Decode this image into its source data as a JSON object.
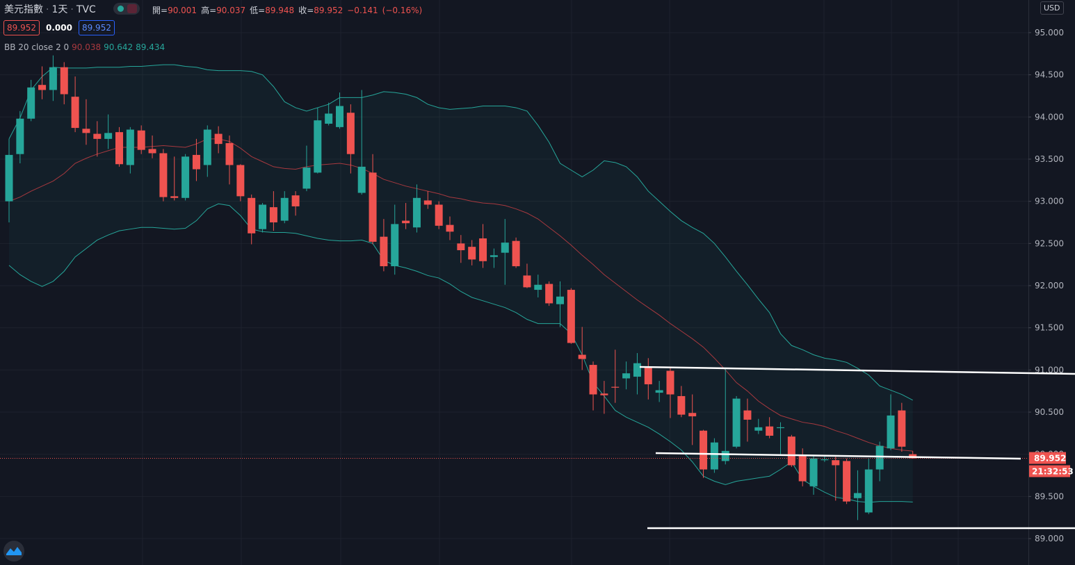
{
  "chart_data": {
    "type": "candlestick",
    "title": "美元指數",
    "interval": "1天",
    "source": "TVC",
    "currency": "USD",
    "legend": {
      "open_label": "開=",
      "high_label": "高=",
      "low_label": "低=",
      "close_label": "收=",
      "change": "−0.141",
      "change_pct": "(−0.16%)"
    },
    "price_boxes": [
      "89.952",
      "0.000",
      "89.952"
    ],
    "indicator_label": "BB 20 close 2 0",
    "countdown": "21:32:53",
    "up_color": "#26a69a",
    "down_color": "#ef5350",
    "open": [
      93.0,
      93.56,
      93.98,
      94.38,
      94.32,
      94.59,
      94.24,
      93.86,
      93.8,
      93.74,
      93.82,
      93.43,
      93.84,
      93.62,
      93.57,
      93.06,
      93.04,
      93.55,
      93.43,
      93.8,
      93.69,
      93.43,
      93.04,
      92.67,
      92.93,
      92.77,
      93.07,
      93.15,
      93.34,
      93.92,
      93.88,
      94.05,
      93.1,
      93.34,
      92.58,
      92.23,
      92.77,
      92.69,
      93.01,
      92.96,
      92.72,
      92.5,
      92.46,
      92.56,
      92.34,
      92.39,
      92.53,
      92.12,
      91.95,
      92.02,
      91.78,
      91.95,
      91.18,
      91.06,
      90.72,
      90.8,
      90.9,
      90.92,
      91.04,
      90.73,
      90.99,
      90.69,
      90.49,
      90.28,
      89.82,
      89.92,
      90.09,
      90.52,
      90.28,
      90.33,
      90.31,
      90.21,
      89.98,
      89.62,
      89.93,
      89.93,
      89.92,
      89.48,
      89.31,
      89.82,
      90.07,
      90.52,
      90.001
    ],
    "high": [
      93.74,
      94.07,
      94.44,
      94.6,
      94.73,
      94.65,
      94.48,
      94.21,
      93.95,
      94.03,
      93.88,
      93.88,
      93.9,
      93.78,
      93.62,
      93.53,
      93.56,
      93.74,
      93.9,
      93.89,
      93.78,
      93.44,
      93.08,
      92.98,
      93.12,
      93.12,
      93.12,
      93.66,
      94.11,
      94.17,
      94.29,
      94.15,
      94.32,
      93.56,
      92.79,
      92.96,
      92.98,
      93.2,
      93.12,
      93.0,
      92.82,
      92.6,
      92.54,
      92.73,
      92.44,
      92.79,
      92.57,
      92.26,
      92.13,
      92.05,
      92.05,
      91.97,
      91.51,
      91.1,
      90.87,
      91.24,
      91.1,
      91.2,
      91.14,
      90.87,
      91.02,
      90.81,
      90.71,
      90.29,
      90.19,
      91.02,
      90.69,
      90.66,
      90.42,
      90.44,
      90.38,
      90.23,
      90.07,
      89.99,
      89.99,
      89.97,
      89.95,
      89.81,
      89.95,
      90.15,
      90.71,
      90.61,
      90.037
    ],
    "low": [
      92.75,
      93.45,
      93.95,
      94.21,
      94.19,
      94.15,
      93.82,
      93.67,
      93.53,
      93.62,
      93.41,
      93.33,
      93.56,
      93.51,
      93.0,
      93.01,
      93.01,
      93.24,
      93.29,
      93.57,
      93.2,
      93.0,
      92.49,
      92.63,
      92.65,
      92.74,
      92.83,
      93.12,
      93.33,
      93.9,
      93.86,
      93.33,
      93.08,
      92.49,
      92.17,
      92.13,
      92.67,
      92.63,
      92.91,
      92.67,
      92.54,
      92.27,
      92.24,
      92.21,
      92.21,
      92.01,
      92.21,
      91.97,
      91.86,
      91.76,
      91.51,
      91.31,
      91.0,
      90.52,
      90.48,
      90.61,
      90.77,
      90.71,
      90.65,
      90.62,
      90.43,
      90.44,
      90.11,
      89.72,
      89.78,
      89.88,
      90.07,
      90.15,
      90.24,
      90.19,
      89.99,
      89.85,
      89.62,
      89.52,
      89.91,
      89.45,
      89.41,
      89.22,
      89.29,
      89.68,
      90.05,
      90.03,
      89.948
    ],
    "close": [
      93.55,
      93.98,
      94.35,
      94.32,
      94.59,
      94.27,
      93.87,
      93.81,
      93.74,
      93.81,
      93.44,
      93.85,
      93.61,
      93.57,
      93.05,
      93.04,
      93.53,
      93.38,
      93.85,
      93.68,
      93.43,
      93.06,
      92.62,
      92.96,
      92.75,
      93.04,
      92.94,
      93.4,
      93.96,
      94.04,
      94.13,
      93.56,
      93.41,
      92.52,
      92.23,
      92.73,
      92.74,
      93.04,
      92.96,
      92.71,
      92.64,
      92.42,
      92.31,
      92.29,
      92.36,
      92.51,
      92.23,
      91.98,
      92.01,
      91.79,
      91.87,
      91.32,
      91.13,
      90.71,
      90.7,
      90.79,
      90.96,
      91.08,
      90.83,
      90.76,
      90.71,
      90.47,
      90.45,
      89.82,
      90.14,
      90.04,
      90.66,
      90.41,
      90.32,
      90.22,
      90.32,
      89.87,
      89.68,
      89.95,
      89.94,
      89.87,
      89.44,
      89.54,
      89.82,
      90.1,
      90.46,
      90.09,
      89.952
    ],
    "bands": {
      "middle": {
        "color": "#a8393f",
        "values": [
          93.0,
          93.05,
          93.12,
          93.18,
          93.24,
          93.33,
          93.45,
          93.51,
          93.56,
          93.6,
          93.64,
          93.64,
          93.64,
          93.65,
          93.66,
          93.65,
          93.64,
          93.68,
          93.74,
          93.74,
          93.71,
          93.63,
          93.53,
          93.47,
          93.41,
          93.39,
          93.38,
          93.41,
          93.43,
          93.44,
          93.45,
          93.43,
          93.39,
          93.33,
          93.26,
          93.22,
          93.18,
          93.15,
          93.12,
          93.09,
          93.05,
          93.03,
          93.0,
          92.98,
          92.97,
          92.95,
          92.91,
          92.86,
          92.79,
          92.69,
          92.59,
          92.48,
          92.36,
          92.25,
          92.13,
          92.03,
          91.93,
          91.83,
          91.74,
          91.65,
          91.55,
          91.46,
          91.37,
          91.27,
          91.14,
          91.0,
          90.85,
          90.75,
          90.63,
          90.54,
          90.46,
          90.42,
          90.38,
          90.36,
          90.33,
          90.28,
          90.24,
          90.19,
          90.14,
          90.1,
          90.07,
          90.05,
          90.038
        ]
      },
      "upper": {
        "color": "#26a69a",
        "values": [
          93.74,
          93.99,
          94.32,
          94.48,
          94.59,
          94.58,
          94.58,
          94.58,
          94.59,
          94.59,
          94.59,
          94.6,
          94.6,
          94.61,
          94.62,
          94.62,
          94.6,
          94.59,
          94.56,
          94.55,
          94.55,
          94.55,
          94.54,
          94.5,
          94.36,
          94.18,
          94.11,
          94.07,
          94.11,
          94.15,
          94.23,
          94.23,
          94.23,
          94.26,
          94.3,
          94.29,
          94.27,
          94.23,
          94.15,
          94.11,
          94.09,
          94.1,
          94.11,
          94.13,
          94.13,
          94.13,
          94.11,
          94.07,
          93.9,
          93.7,
          93.45,
          93.37,
          93.29,
          93.37,
          93.48,
          93.46,
          93.41,
          93.29,
          93.12,
          93.0,
          92.88,
          92.77,
          92.69,
          92.62,
          92.5,
          92.34,
          92.17,
          92.01,
          91.84,
          91.68,
          91.43,
          91.29,
          91.24,
          91.18,
          91.14,
          91.12,
          91.09,
          91.02,
          90.94,
          90.81,
          90.76,
          90.71,
          90.642
        ]
      },
      "lower": {
        "color": "#26a69a",
        "values": [
          92.24,
          92.13,
          92.05,
          91.99,
          92.05,
          92.17,
          92.34,
          92.44,
          92.54,
          92.6,
          92.65,
          92.67,
          92.69,
          92.69,
          92.68,
          92.67,
          92.68,
          92.77,
          92.91,
          92.97,
          92.95,
          92.83,
          92.67,
          92.64,
          92.63,
          92.63,
          92.62,
          92.59,
          92.56,
          92.54,
          92.53,
          92.53,
          92.54,
          92.5,
          92.3,
          92.24,
          92.21,
          92.17,
          92.12,
          92.09,
          92.02,
          91.93,
          91.86,
          91.82,
          91.78,
          91.74,
          91.68,
          91.6,
          91.55,
          91.55,
          91.55,
          91.43,
          91.18,
          90.85,
          90.69,
          90.52,
          90.44,
          90.38,
          90.32,
          90.24,
          90.15,
          90.05,
          89.91,
          89.74,
          89.68,
          89.64,
          89.68,
          89.7,
          89.72,
          89.74,
          89.82,
          89.91,
          89.7,
          89.62,
          89.55,
          89.49,
          89.47,
          89.44,
          89.43,
          89.44,
          89.44,
          89.44,
          89.434
        ]
      }
    },
    "ylim": [
      88.687,
      95.387
    ],
    "yticks": [
      {
        "value": 89,
        "label": "89.000"
      },
      {
        "value": 89.5,
        "label": "89.500"
      },
      {
        "value": 90,
        "label": "90.000"
      },
      {
        "value": 90.5,
        "label": "90.500"
      },
      {
        "value": 91,
        "label": "91.000"
      },
      {
        "value": 91.5,
        "label": "91.500"
      },
      {
        "value": 92,
        "label": "92.000"
      },
      {
        "value": 92.5,
        "label": "92.500"
      },
      {
        "value": 93,
        "label": "93.000"
      },
      {
        "value": 93.5,
        "label": "93.500"
      },
      {
        "value": 94,
        "label": "94.000"
      },
      {
        "value": 94.5,
        "label": "94.500"
      },
      {
        "value": 95,
        "label": "95.000"
      }
    ],
    "grid": true
  }
}
